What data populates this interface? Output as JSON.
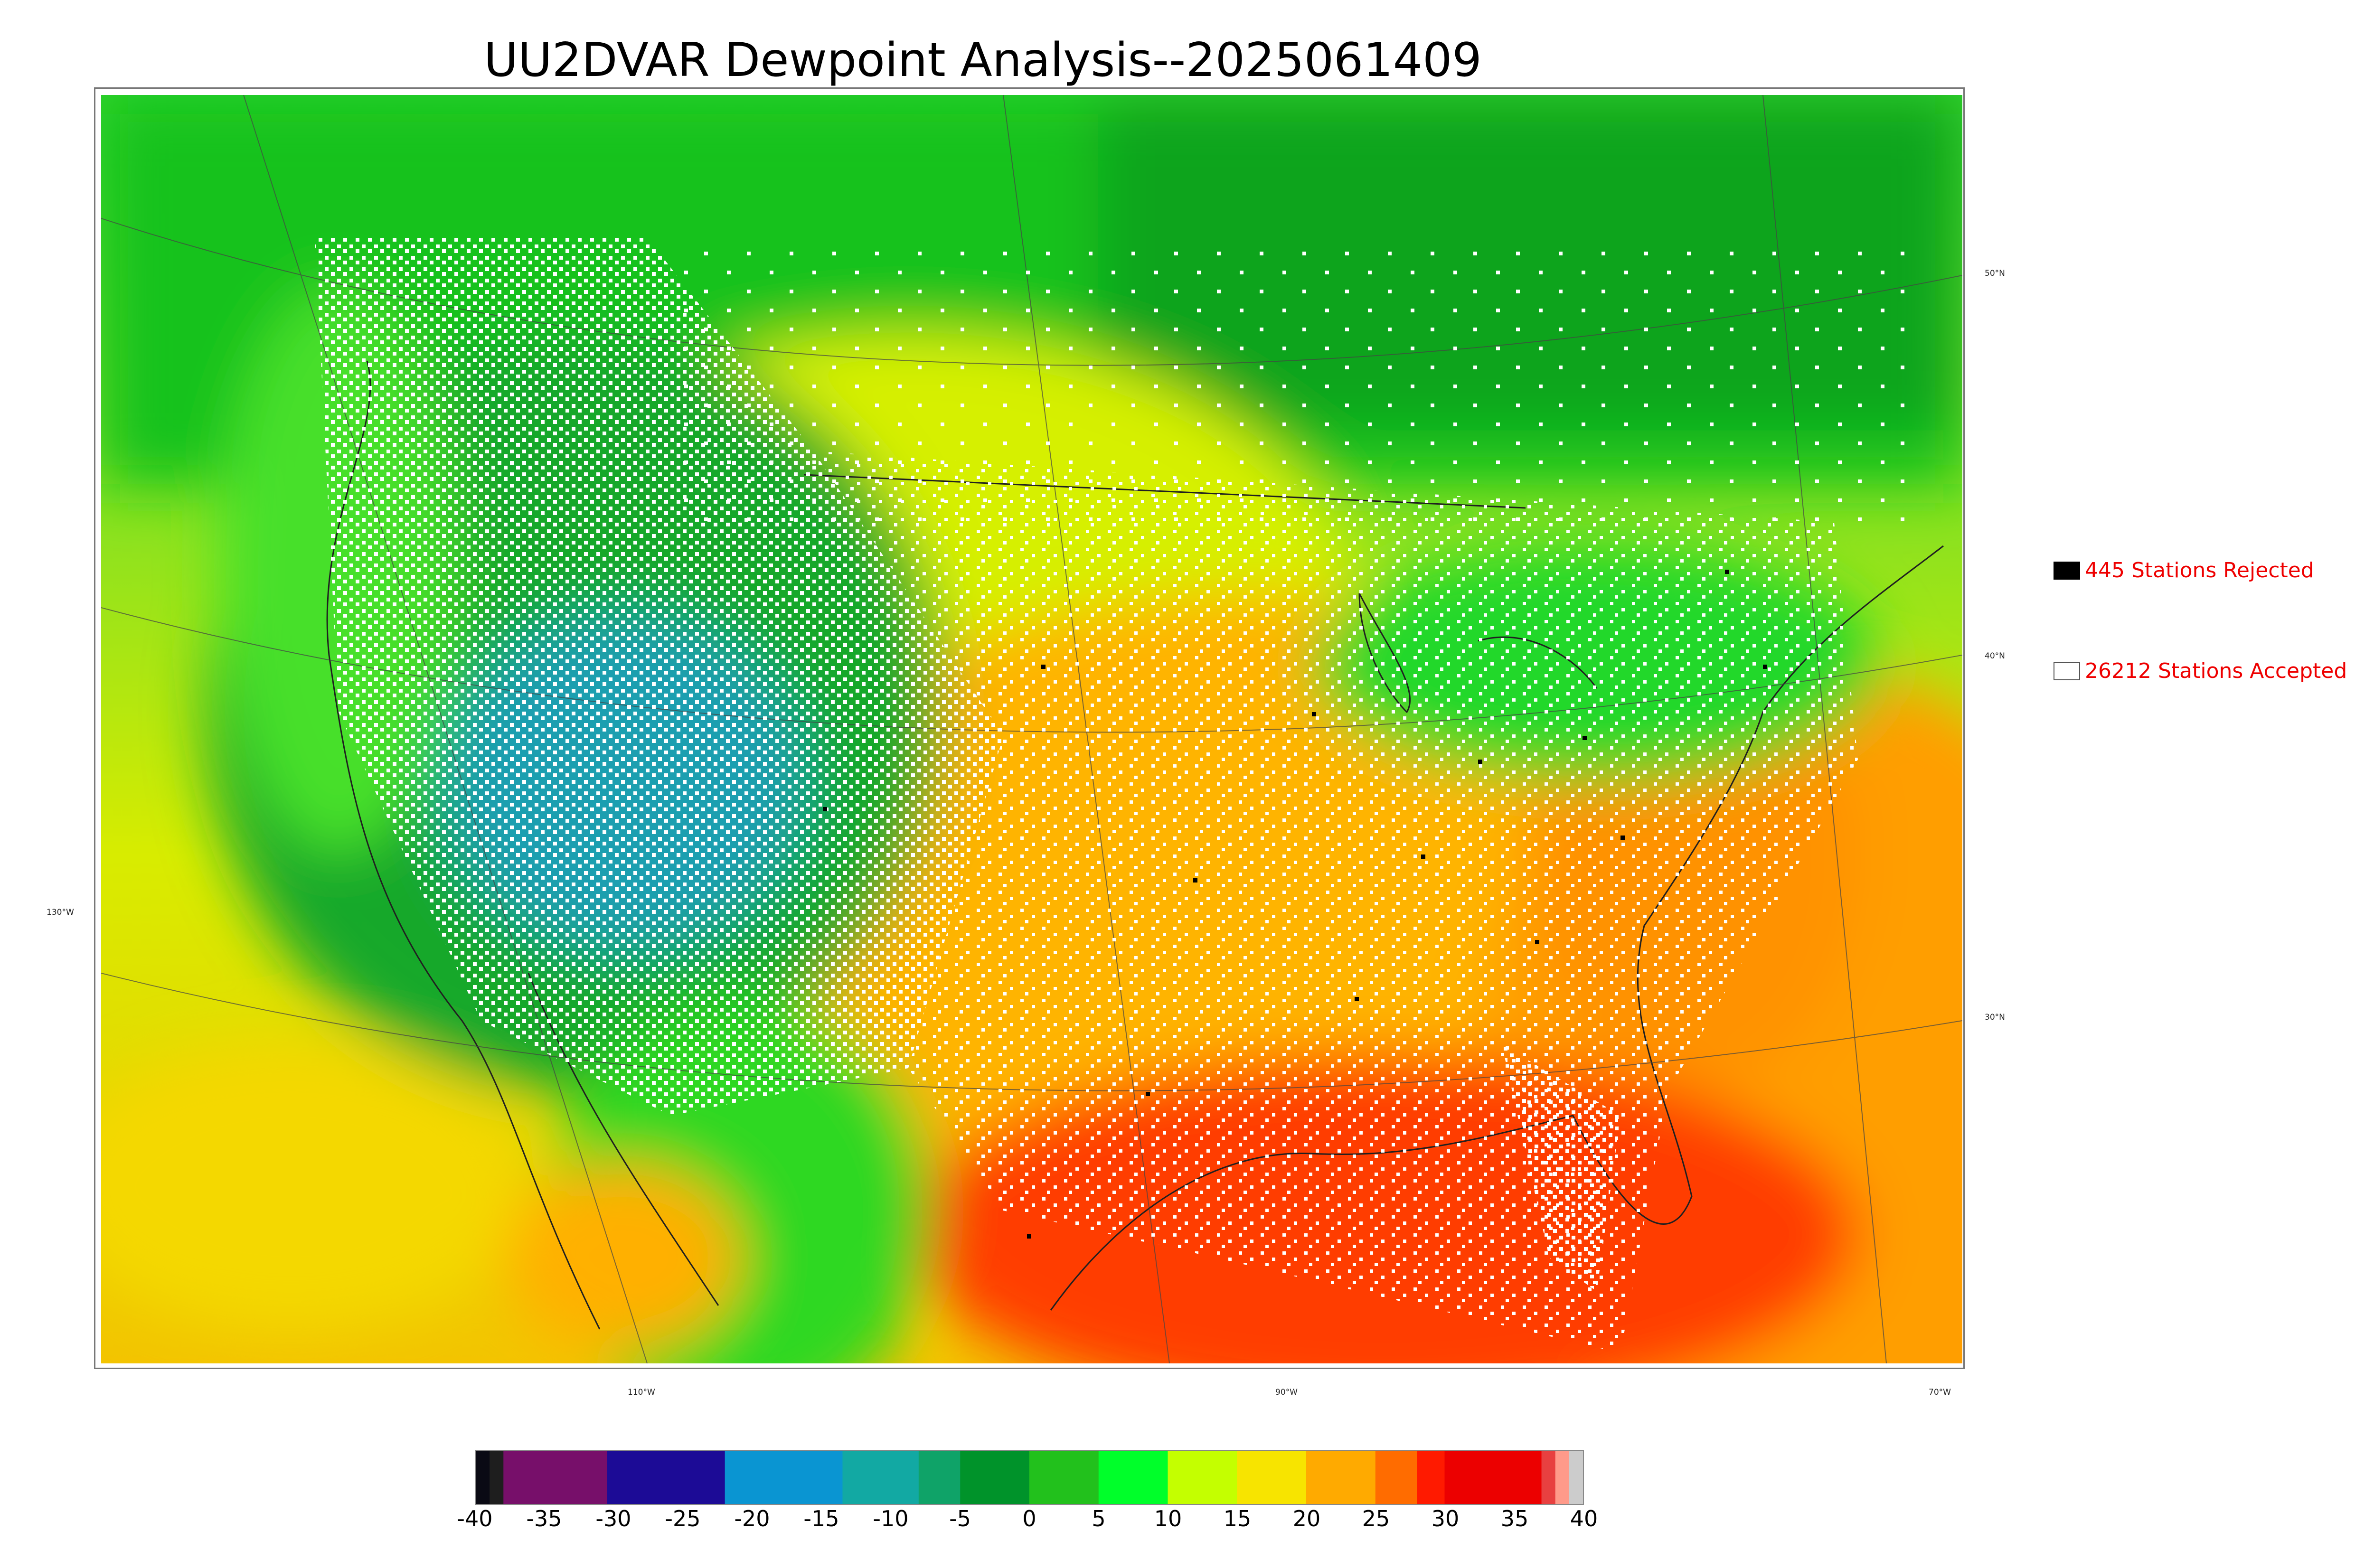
{
  "title": "UU2DVAR Dewpoint Analysis--2025061409",
  "legend": {
    "rejected": {
      "label": "445 Stations Rejected",
      "swatch": "#000000"
    },
    "accepted": {
      "label": "26212 Stations Accepted",
      "swatch": "#ffffff"
    },
    "text_color": "#ee0000"
  },
  "map": {
    "lat_labels": [
      "50°N",
      "40°N",
      "30°N"
    ],
    "lon_labels": [
      "130°W",
      "110°W",
      "90°W",
      "70°W"
    ]
  },
  "colorbar": {
    "ticks": [
      "-40",
      "-35",
      "-30",
      "-25",
      "-20",
      "-15",
      "-10",
      "-5",
      "0",
      "5",
      "10",
      "15",
      "20",
      "25",
      "30",
      "35",
      "40"
    ],
    "range": [
      -40,
      40
    ],
    "segments": [
      {
        "from": -40,
        "to": -39,
        "color": "#0a0a14"
      },
      {
        "from": -39,
        "to": -38,
        "color": "#1e1e1e"
      },
      {
        "from": -38,
        "to": -30.5,
        "color": "#770f6a"
      },
      {
        "from": -30.5,
        "to": -22,
        "color": "#1c0b96"
      },
      {
        "from": -22,
        "to": -13.5,
        "color": "#0a95d2"
      },
      {
        "from": -13.5,
        "to": -8,
        "color": "#12a9a3"
      },
      {
        "from": -8,
        "to": -5,
        "color": "#0fa368"
      },
      {
        "from": -5,
        "to": 0,
        "color": "#00932a"
      },
      {
        "from": 0,
        "to": 5,
        "color": "#22c11c"
      },
      {
        "from": 5,
        "to": 10,
        "color": "#00ff2a"
      },
      {
        "from": 10,
        "to": 15,
        "color": "#c4ff00"
      },
      {
        "from": 15,
        "to": 20,
        "color": "#f7e400"
      },
      {
        "from": 20,
        "to": 25,
        "color": "#ffaa00"
      },
      {
        "from": 25,
        "to": 28,
        "color": "#ff6c00"
      },
      {
        "from": 28,
        "to": 30,
        "color": "#ff1a00"
      },
      {
        "from": 30,
        "to": 37,
        "color": "#ec0000"
      },
      {
        "from": 37,
        "to": 38,
        "color": "#e84040"
      },
      {
        "from": 38,
        "to": 39,
        "color": "#ff9a8a"
      },
      {
        "from": 39,
        "to": 40,
        "color": "#cccccc"
      }
    ]
  }
}
